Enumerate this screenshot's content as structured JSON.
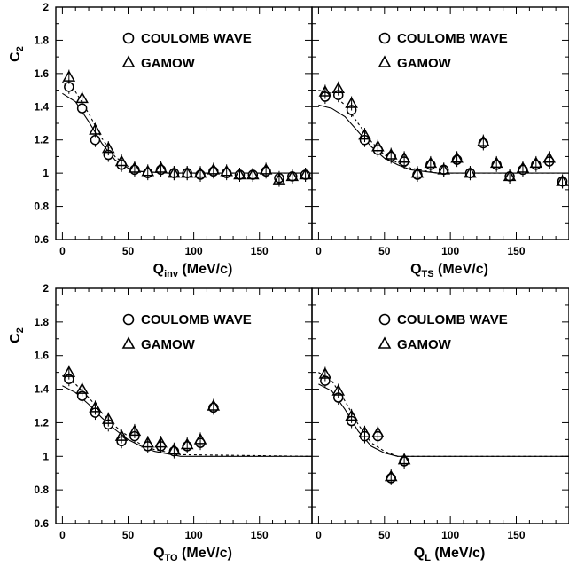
{
  "chart_data": [
    {
      "type": "scatter",
      "ylabel": "C",
      "ylabel_sub": "2",
      "xlabel": "Q",
      "xlabel_sub": "inv",
      "xlabel_unit": " (MeV/c)",
      "xlim": [
        -5,
        190
      ],
      "ylim": [
        0.6,
        2
      ],
      "x_ticks": [
        "0",
        "50",
        "100",
        "150"
      ],
      "y_ticks": [
        "0.6",
        "0.8",
        "1",
        "1.2",
        "1.4",
        "1.6",
        "1.8",
        "2"
      ],
      "legend_position": "top-right",
      "series": [
        {
          "name": "COULOMB WAVE",
          "marker": "circle",
          "x": [
            5,
            15,
            25,
            35,
            45,
            55,
            65,
            75,
            85,
            95,
            105,
            115,
            125,
            135,
            145,
            155,
            165,
            175,
            185
          ],
          "y": [
            1.52,
            1.39,
            1.2,
            1.11,
            1.05,
            1.02,
            1.0,
            1.02,
            1.0,
            1.0,
            0.99,
            1.01,
            1.0,
            0.99,
            0.99,
            1.01,
            0.97,
            0.98,
            0.99
          ]
        },
        {
          "name": "GAMOW",
          "marker": "triangle",
          "x": [
            5,
            15,
            25,
            35,
            45,
            55,
            65,
            75,
            85,
            95,
            105,
            115,
            125,
            135,
            145,
            155,
            165,
            175,
            185
          ],
          "y": [
            1.58,
            1.45,
            1.26,
            1.15,
            1.07,
            1.03,
            1.01,
            1.03,
            1.0,
            1.0,
            1.0,
            1.02,
            1.01,
            0.99,
            0.99,
            1.02,
            0.96,
            0.98,
            0.99
          ]
        }
      ],
      "fit_solid": [
        [
          0,
          1.48
        ],
        [
          10,
          1.43
        ],
        [
          20,
          1.31
        ],
        [
          30,
          1.18
        ],
        [
          40,
          1.08
        ],
        [
          50,
          1.03
        ],
        [
          60,
          1.01
        ],
        [
          80,
          1.0
        ],
        [
          190,
          1.0
        ]
      ],
      "fit_dashed": [
        [
          0,
          1.55
        ],
        [
          10,
          1.49
        ],
        [
          20,
          1.36
        ],
        [
          30,
          1.21
        ],
        [
          40,
          1.1
        ],
        [
          50,
          1.04
        ],
        [
          60,
          1.01
        ],
        [
          80,
          1.0
        ],
        [
          190,
          1.0
        ]
      ]
    },
    {
      "type": "scatter",
      "ylabel": "",
      "xlabel": "Q",
      "xlabel_sub": "TS",
      "xlabel_unit": " (MeV/c)",
      "xlim": [
        -5,
        190
      ],
      "ylim": [
        0.6,
        2
      ],
      "x_ticks": [
        "0",
        "50",
        "100",
        "150"
      ],
      "y_ticks": [],
      "legend_position": "top-right",
      "series": [
        {
          "name": "COULOMB WAVE",
          "marker": "circle",
          "x": [
            5,
            15,
            25,
            35,
            45,
            55,
            65,
            75,
            85,
            95,
            105,
            115,
            125,
            135,
            145,
            155,
            165,
            175,
            185
          ],
          "y": [
            1.46,
            1.47,
            1.38,
            1.2,
            1.14,
            1.1,
            1.07,
            0.99,
            1.05,
            1.02,
            1.08,
            1.0,
            1.18,
            1.05,
            0.98,
            1.02,
            1.05,
            1.07,
            0.95
          ]
        },
        {
          "name": "GAMOW",
          "marker": "triangle",
          "x": [
            5,
            15,
            25,
            35,
            45,
            55,
            65,
            75,
            85,
            95,
            105,
            115,
            125,
            135,
            145,
            155,
            165,
            175,
            185
          ],
          "y": [
            1.49,
            1.51,
            1.42,
            1.23,
            1.16,
            1.11,
            1.09,
            1.0,
            1.06,
            1.02,
            1.09,
            1.0,
            1.19,
            1.06,
            0.98,
            1.03,
            1.06,
            1.09,
            0.95
          ]
        }
      ],
      "fit_solid": [
        [
          0,
          1.41
        ],
        [
          10,
          1.39
        ],
        [
          20,
          1.34
        ],
        [
          30,
          1.25
        ],
        [
          40,
          1.16
        ],
        [
          50,
          1.09
        ],
        [
          60,
          1.05
        ],
        [
          70,
          1.02
        ],
        [
          90,
          1.0
        ],
        [
          190,
          1.0
        ]
      ],
      "fit_dashed": [
        [
          0,
          1.5
        ],
        [
          10,
          1.48
        ],
        [
          20,
          1.41
        ],
        [
          30,
          1.3
        ],
        [
          40,
          1.19
        ],
        [
          50,
          1.11
        ],
        [
          60,
          1.06
        ],
        [
          70,
          1.03
        ],
        [
          90,
          1.0
        ],
        [
          190,
          1.0
        ]
      ]
    },
    {
      "type": "scatter",
      "ylabel": "C",
      "ylabel_sub": "2",
      "xlabel": "Q",
      "xlabel_sub": "TO",
      "xlabel_unit": " (MeV/c)",
      "xlim": [
        -5,
        190
      ],
      "ylim": [
        0.6,
        2
      ],
      "x_ticks": [
        "0",
        "50",
        "100",
        "150"
      ],
      "y_ticks": [
        "0.6",
        "0.8",
        "1",
        "1.2",
        "1.4",
        "1.6",
        "1.8",
        "2"
      ],
      "legend_position": "top-right",
      "series": [
        {
          "name": "COULOMB WAVE",
          "marker": "circle",
          "x": [
            5,
            15,
            25,
            35,
            45,
            55,
            65,
            75,
            85,
            95,
            105,
            115
          ],
          "y": [
            1.46,
            1.36,
            1.26,
            1.19,
            1.09,
            1.12,
            1.06,
            1.06,
            1.03,
            1.06,
            1.08,
            1.29
          ]
        },
        {
          "name": "GAMOW",
          "marker": "triangle",
          "x": [
            5,
            15,
            25,
            35,
            45,
            55,
            65,
            75,
            85,
            95,
            105,
            115
          ],
          "y": [
            1.5,
            1.4,
            1.29,
            1.22,
            1.12,
            1.15,
            1.08,
            1.08,
            1.04,
            1.07,
            1.1,
            1.3
          ]
        }
      ],
      "fit_solid": [
        [
          0,
          1.42
        ],
        [
          10,
          1.38
        ],
        [
          20,
          1.31
        ],
        [
          30,
          1.23
        ],
        [
          40,
          1.16
        ],
        [
          50,
          1.1
        ],
        [
          60,
          1.06
        ],
        [
          70,
          1.03
        ],
        [
          90,
          1.0
        ],
        [
          190,
          1.0
        ]
      ],
      "fit_dashed": [
        [
          0,
          1.48
        ],
        [
          10,
          1.43
        ],
        [
          20,
          1.35
        ],
        [
          30,
          1.26
        ],
        [
          40,
          1.18
        ],
        [
          50,
          1.12
        ],
        [
          60,
          1.07
        ],
        [
          70,
          1.04
        ],
        [
          90,
          1.01
        ],
        [
          190,
          1.0
        ]
      ]
    },
    {
      "type": "scatter",
      "ylabel": "",
      "xlabel": "Q",
      "xlabel_sub": "L",
      "xlabel_unit": " (MeV/c)",
      "xlim": [
        -5,
        190
      ],
      "ylim": [
        0.6,
        2
      ],
      "x_ticks": [
        "0",
        "50",
        "100",
        "150"
      ],
      "y_ticks": [],
      "legend_position": "top-right",
      "series": [
        {
          "name": "COULOMB WAVE",
          "marker": "circle",
          "x": [
            5,
            15,
            25,
            35,
            45,
            55,
            65
          ],
          "y": [
            1.45,
            1.35,
            1.21,
            1.12,
            1.12,
            0.87,
            0.97
          ]
        },
        {
          "name": "GAMOW",
          "marker": "triangle",
          "x": [
            5,
            15,
            25,
            35,
            45,
            55,
            65
          ],
          "y": [
            1.49,
            1.39,
            1.24,
            1.14,
            1.14,
            0.88,
            0.98
          ]
        }
      ],
      "fit_solid": [
        [
          0,
          1.43
        ],
        [
          10,
          1.39
        ],
        [
          20,
          1.28
        ],
        [
          30,
          1.15
        ],
        [
          40,
          1.06
        ],
        [
          50,
          1.02
        ],
        [
          60,
          1.0
        ],
        [
          190,
          1.0
        ]
      ],
      "fit_dashed": [
        [
          0,
          1.5
        ],
        [
          10,
          1.45
        ],
        [
          20,
          1.33
        ],
        [
          30,
          1.19
        ],
        [
          40,
          1.08
        ],
        [
          50,
          1.03
        ],
        [
          60,
          1.0
        ],
        [
          190,
          1.0
        ]
      ]
    }
  ]
}
